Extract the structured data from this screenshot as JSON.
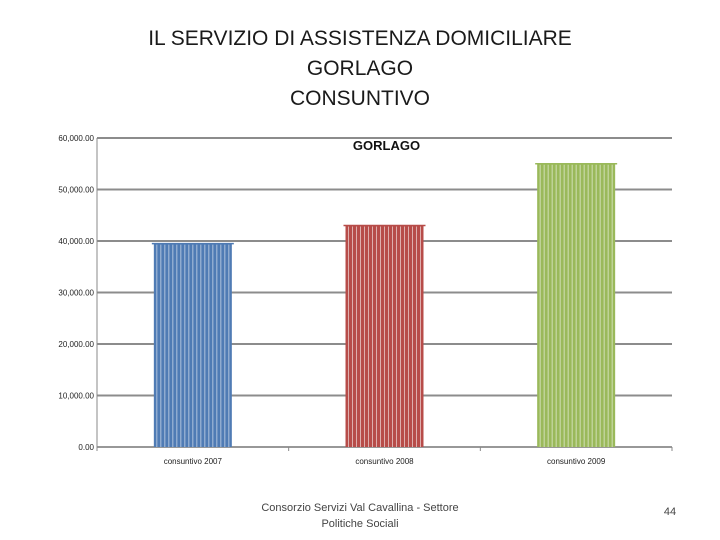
{
  "slide": {
    "title_lines": [
      "IL SERVIZIO DI ASSISTENZA DOMICILIARE",
      "GORLAGO",
      "CONSUNTIVO"
    ],
    "footer": "Consorzio Servizi Val Cavallina - Settore Politiche Sociali",
    "page_number": "44"
  },
  "chart_data": {
    "type": "bar",
    "title": "GORLAGO",
    "categories": [
      "consuntivo 2007",
      "consuntivo 2008",
      "consuntivo 2009"
    ],
    "values": [
      39500,
      43000,
      55000
    ],
    "colors": [
      "#4f7bb4",
      "#b74c49",
      "#9ab95a"
    ],
    "ylim": [
      0,
      60000
    ],
    "yticks": [
      0,
      10000,
      20000,
      30000,
      40000,
      50000,
      60000
    ],
    "ytick_labels": [
      "0.00",
      "10,000.00",
      "20,000.00",
      "30,000.00",
      "40,000.00",
      "50,000.00",
      "60,000.00"
    ],
    "xlabel": "",
    "ylabel": "",
    "grid": true
  }
}
